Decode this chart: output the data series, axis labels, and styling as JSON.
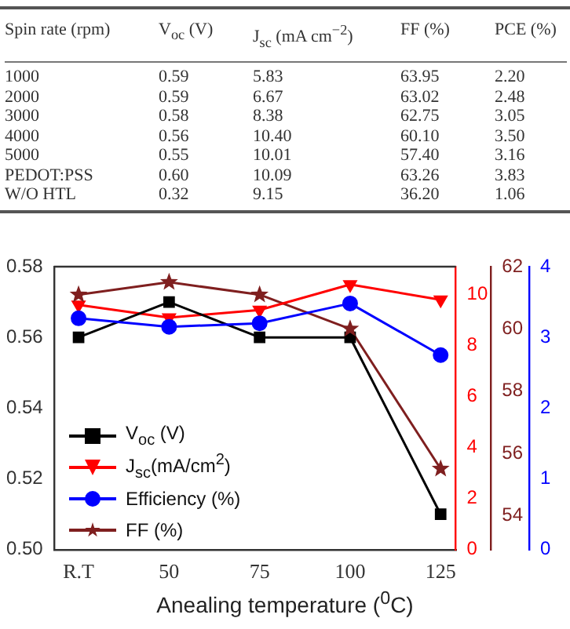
{
  "chart_data": [
    {
      "type": "line",
      "annotations": [
        "Spin rate (rpm)",
        "V$_{oc}$ (V)",
        "J$_{sc}$ (mA cm$^{−2}$)",
        "FF (%)",
        "PCE (%)",
        "1000",
        "0.59",
        "5.83",
        "63.95",
        "2.20",
        "2000",
        "0.59",
        "6.67",
        "63.02",
        "2.48",
        "3000",
        "0.58",
        "8.38",
        "62.75",
        "3.05",
        "4000",
        "0.56",
        "10.40",
        "60.10",
        "3.50",
        "5000",
        "0.55",
        "10.01",
        "57.40",
        "3.16",
        "PEDOT:PSS",
        "0.60",
        "10.09",
        "63.26",
        "3.83",
        "W/O HTL",
        "0.32",
        "9.15",
        "36.20",
        "1.06"
      ],
      "xlabel": "Anealing temperature ($^{0}$C)",
      "x": [
        25,
        50,
        75,
        100,
        125
      ],
      "xlim": [
        18.2,
        129.2
      ],
      "xticks": [
        {
          "value": 25,
          "label": "R.T"
        },
        50,
        75,
        100,
        125
      ],
      "ylim": [
        0.5,
        0.58
      ],
      "yticks": [
        {
          "value": 0.5,
          "label": "0.50"
        },
        0.52,
        0.54,
        0.56,
        0.58
      ],
      "y2lim": [
        0,
        11.1
      ],
      "y2ticks": [
        0,
        2,
        4,
        6,
        8,
        10
      ],
      "y3lim": [
        52.9,
        62
      ],
      "y3ticks": [
        54,
        56,
        58,
        60,
        62
      ],
      "grid": false,
      "legend": "bottom left",
      "line_style": "solid",
      "series": [
        {
          "name": "V$_{oc}$ (V)",
          "color": "#000000",
          "marker": "square",
          "values": [
            0.56,
            0.57,
            0.56,
            0.56,
            0.51
          ]
        },
        {
          "name": "J$_{sc}$(mA/cm$^{2}$)",
          "color": "#ff0000",
          "marker": "triangle",
          "axis": "y2",
          "values": [
            9.6,
            9.1,
            9.4,
            10.4,
            9.8
          ]
        },
        {
          "name": "FF (%)",
          "color": "#7f1f1f",
          "marker": "star",
          "axis": "y3",
          "values": [
            61.1,
            61.5,
            61.1,
            60.0,
            55.5
          ]
        }
      ]
    },
    {
      "type": "line",
      "x": [
        25,
        50,
        75,
        100,
        125
      ],
      "xlim": [
        18.2,
        129.2
      ],
      "ylim": [
        0,
        4
      ],
      "yticks": [
        0,
        1,
        2,
        3,
        4
      ],
      "tick_labels": "y",
      "grid": false,
      "legend": "bottom left",
      "line_style": "solid",
      "series": [
        {
          "name": "Efficiency (%)",
          "color": "#0000ff",
          "marker": "circle",
          "values": [
            3.27,
            3.15,
            3.2,
            3.48,
            2.75
          ]
        }
      ]
    }
  ]
}
